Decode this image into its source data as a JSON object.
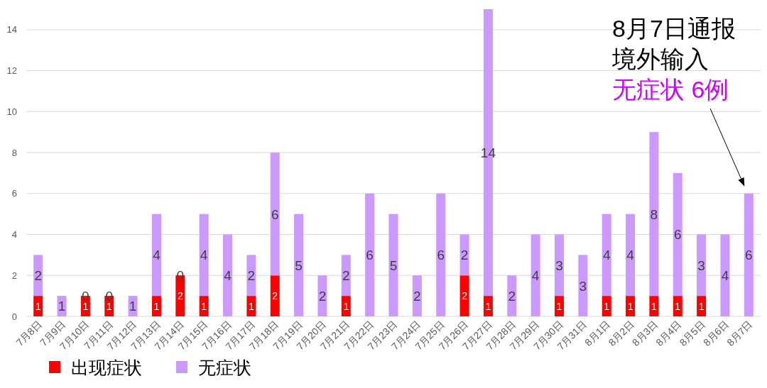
{
  "chart_data": {
    "type": "bar",
    "stacked": true,
    "categories": [
      "7月8日",
      "7月9日",
      "7月10日",
      "7月11日",
      "7月12日",
      "7月13日",
      "7月14日",
      "7月15日",
      "7月16日",
      "7月17日",
      "7月18日",
      "7月19日",
      "7月20日",
      "7月21日",
      "7月22日",
      "7月23日",
      "7月24日",
      "7月25日",
      "7月26日",
      "7月27日",
      "7月28日",
      "7月29日",
      "7月30日",
      "7月31日",
      "8月1日",
      "8月2日",
      "8月3日",
      "8月4日",
      "8月5日",
      "8月6日",
      "8月7日"
    ],
    "series": [
      {
        "name": "出现症状",
        "color": "#ff0000",
        "values": [
          1,
          0,
          1,
          1,
          0,
          1,
          2,
          1,
          0,
          1,
          2,
          0,
          0,
          1,
          0,
          0,
          0,
          0,
          2,
          1,
          0,
          0,
          1,
          0,
          1,
          1,
          1,
          1,
          1,
          0,
          0
        ],
        "value_labels": [
          "1",
          null,
          "1",
          "1",
          null,
          "1",
          "2",
          "1",
          null,
          "1",
          "2",
          null,
          null,
          "1",
          null,
          null,
          null,
          null,
          "2",
          "1",
          null,
          null,
          "1",
          null,
          "1",
          "1",
          "1",
          "1",
          "1",
          null,
          null
        ]
      },
      {
        "name": "无症状",
        "color": "#cc99ff",
        "values": [
          2,
          1,
          0,
          0,
          1,
          4,
          0,
          4,
          4,
          2,
          6,
          5,
          2,
          2,
          6,
          5,
          2,
          6,
          2,
          14,
          2,
          4,
          3,
          3,
          4,
          4,
          8,
          6,
          3,
          4,
          6
        ],
        "value_labels": [
          "2",
          "1",
          "0",
          "0",
          "1",
          "4",
          "0",
          "4",
          "4",
          "2",
          "6",
          "5",
          "2",
          "2",
          "6",
          "5",
          "2",
          "6",
          "2",
          "14",
          "2",
          "4",
          "3",
          "3",
          "4",
          "4",
          "8",
          "6",
          "3",
          "4",
          "6"
        ]
      }
    ],
    "ylim": [
      0,
      15
    ],
    "yticks": [
      0,
      2,
      4,
      6,
      8,
      10,
      12,
      14
    ],
    "grid": "y",
    "legend": "bottom left",
    "annotations": [
      "8月7日通报",
      "境外输入",
      "无症状 6例"
    ]
  }
}
